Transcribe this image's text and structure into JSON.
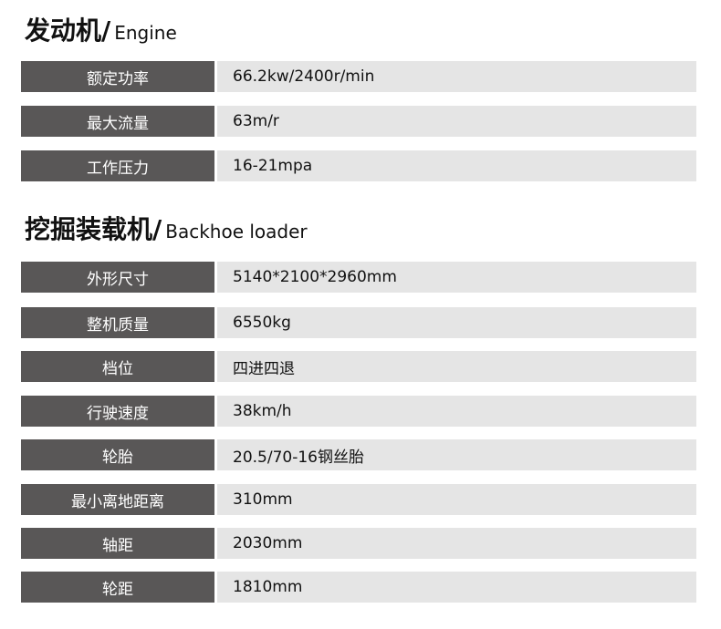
{
  "engine": {
    "title_zh": "发动机/",
    "title_en": "Engine",
    "rows": [
      {
        "label": "额定功率",
        "value": "66.2kw/2400r/min"
      },
      {
        "label": "最大流量",
        "value": "63m/r"
      },
      {
        "label": "工作压力",
        "value": "16-21mpa"
      }
    ]
  },
  "loader": {
    "title_zh": "挖掘装载机/",
    "title_en": "Backhoe loader",
    "rows": [
      {
        "label": "外形尺寸",
        "value": "5140*2100*2960mm"
      },
      {
        "label": "整机质量",
        "value": "6550kg"
      },
      {
        "label": "档位",
        "value": "四进四退"
      },
      {
        "label": "行驶速度",
        "value": "38km/h"
      },
      {
        "label": "轮胎",
        "value": "20.5/70-16钢丝胎"
      },
      {
        "label": "最小离地距离",
        "value": "310mm"
      },
      {
        "label": "轴距",
        "value": "2030mm"
      },
      {
        "label": "轮距",
        "value": "1810mm"
      }
    ]
  }
}
